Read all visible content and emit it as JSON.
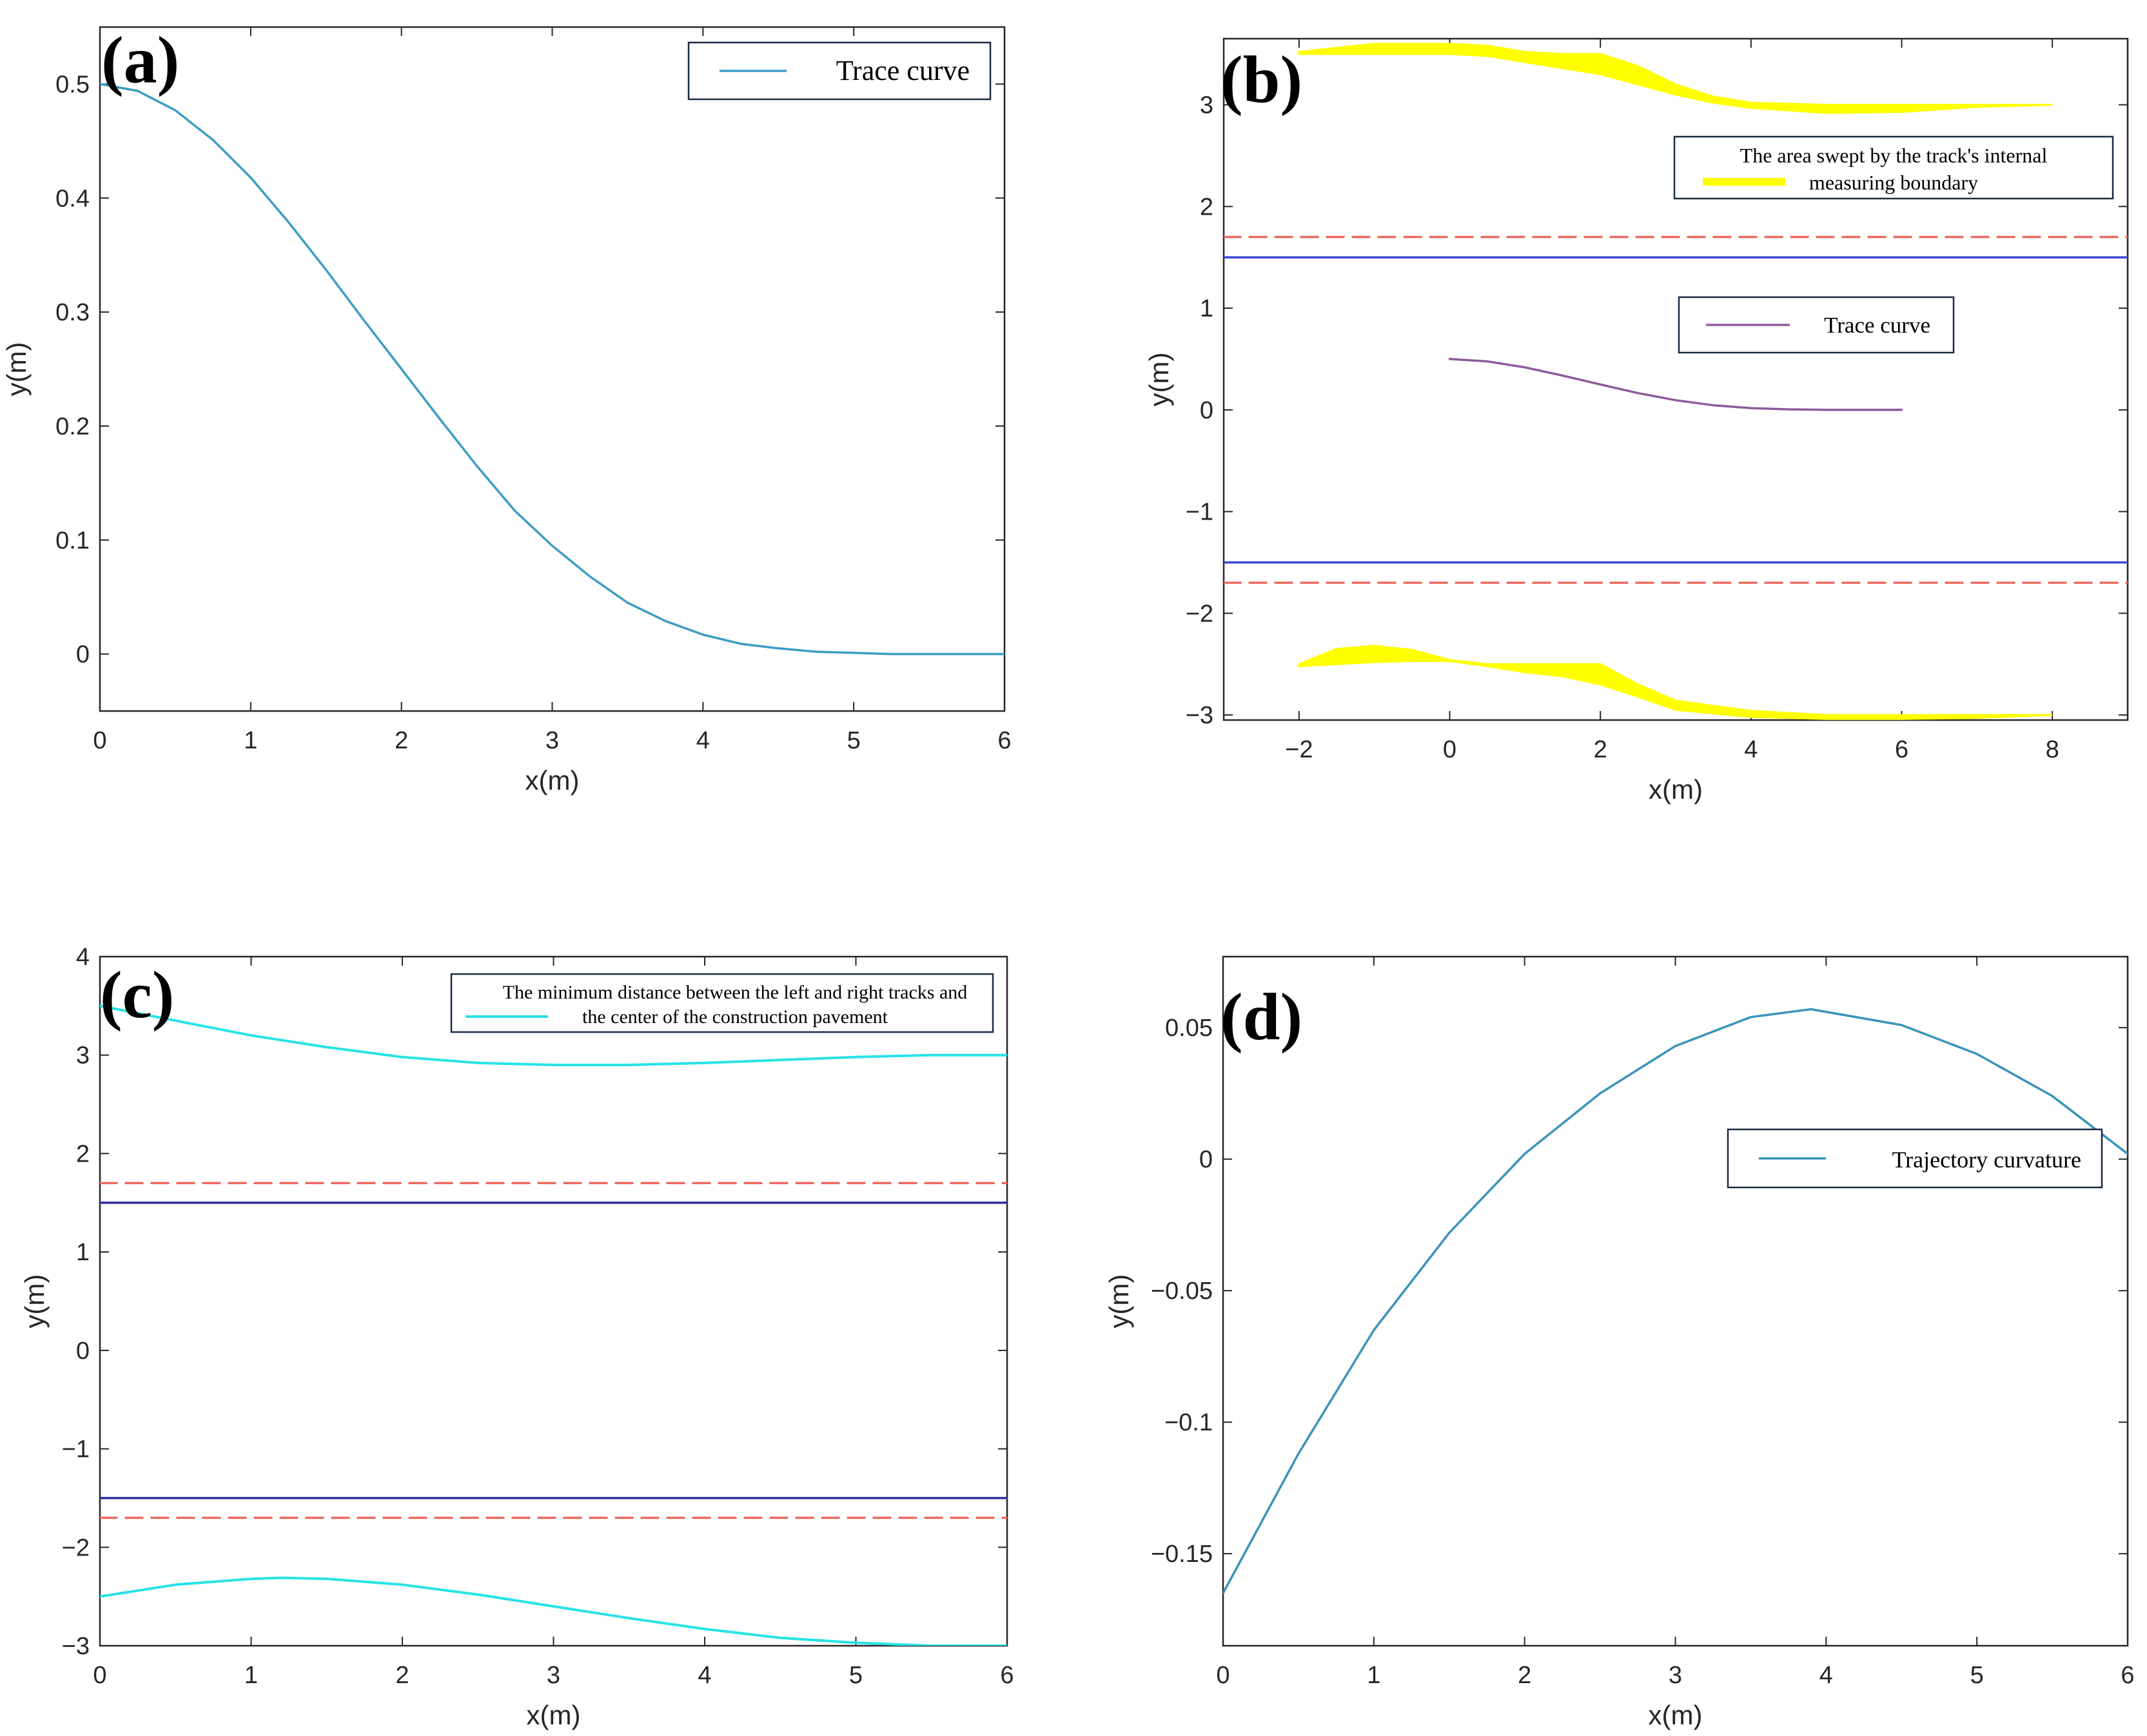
{
  "colors": {
    "trace_a": "#3d9dc4",
    "trace_b": "#8e5b9c",
    "swept": "#ffff00",
    "boundary_blue": "#3c46d6",
    "boundary_blue_c": "#2e2e9a",
    "boundary_red": "#ec6a61",
    "min_dist": "#27e3e6",
    "curvature": "#3a93bb",
    "axes": "#262626"
  },
  "chart_data": [
    {
      "id": "a",
      "panel_label": "(a)",
      "type": "line",
      "xlabel": "x(m)",
      "ylabel": "y(m)",
      "xlim": [
        0,
        6
      ],
      "ylim": [
        -0.05,
        0.55
      ],
      "xticks": [
        0,
        1,
        2,
        3,
        4,
        5,
        6
      ],
      "yticks": [
        0,
        0.1,
        0.2,
        0.3,
        0.4,
        0.5
      ],
      "xtick_labels": [
        "0",
        "1",
        "2",
        "3",
        "4",
        "5",
        "6"
      ],
      "ytick_labels": [
        "0",
        "0.1",
        "0.2",
        "0.3",
        "0.4",
        "0.5"
      ],
      "legend": [
        "Trace curve"
      ],
      "series": [
        {
          "name": "Trace curve",
          "style": "trace_a",
          "x": [
            0,
            0.25,
            0.5,
            0.75,
            1,
            1.25,
            1.5,
            1.75,
            2,
            2.25,
            2.5,
            2.75,
            3,
            3.25,
            3.5,
            3.75,
            4,
            4.25,
            4.5,
            4.75,
            5,
            5.25,
            5.5,
            5.75,
            6
          ],
          "y": [
            0.5,
            0.494,
            0.477,
            0.451,
            0.418,
            0.379,
            0.337,
            0.293,
            0.25,
            0.207,
            0.165,
            0.126,
            0.095,
            0.068,
            0.045,
            0.029,
            0.017,
            0.009,
            0.005,
            0.002,
            0.001,
            0.0,
            0.0,
            0.0,
            0.0
          ]
        }
      ]
    },
    {
      "id": "b",
      "panel_label": "(b)",
      "type": "line",
      "xlabel": "x(m)",
      "ylabel": "y(m)",
      "xlim": [
        -3,
        9
      ],
      "ylim": [
        -3.05,
        3.65
      ],
      "xticks": [
        -2,
        0,
        2,
        4,
        6,
        8
      ],
      "yticks": [
        -3,
        -2,
        -1,
        0,
        1,
        2,
        3
      ],
      "xtick_labels": [
        "−2",
        "0",
        "2",
        "4",
        "6",
        "8"
      ],
      "ytick_labels": [
        "−3",
        "−2",
        "−1",
        "0",
        "1",
        "2",
        "3"
      ],
      "legend": [
        "The area swept by the track's internal",
        "measuring boundary",
        "Trace curve"
      ],
      "series": [
        {
          "name": "Trace curve",
          "style": "trace_b",
          "x": [
            0,
            0.5,
            1,
            1.5,
            2,
            2.5,
            3,
            3.5,
            4,
            4.5,
            5,
            5.5,
            6
          ],
          "y": [
            0.5,
            0.477,
            0.418,
            0.337,
            0.25,
            0.165,
            0.095,
            0.045,
            0.017,
            0.005,
            0.001,
            0.0,
            0.0
          ]
        },
        {
          "name": "swept-upper-top",
          "style": "swept",
          "fill": true,
          "x": [
            -2,
            -1,
            0,
            0.5,
            1,
            1.5,
            2,
            2.5,
            3,
            3.5,
            4,
            5,
            6,
            7,
            8
          ],
          "y": [
            3.52,
            3.6,
            3.6,
            3.58,
            3.52,
            3.5,
            3.5,
            3.38,
            3.2,
            3.08,
            3.02,
            3.0,
            3.0,
            3.0,
            3.0
          ]
        },
        {
          "name": "swept-upper-bottom",
          "style": "swept",
          "fill": true,
          "x": [
            -2,
            -1,
            0,
            0.5,
            1,
            1.5,
            2,
            2.5,
            3,
            3.5,
            4,
            5,
            6,
            7,
            8
          ],
          "y": [
            3.5,
            3.5,
            3.5,
            3.48,
            3.42,
            3.36,
            3.3,
            3.2,
            3.1,
            3.02,
            2.97,
            2.92,
            2.93,
            2.98,
            3.0
          ]
        },
        {
          "name": "swept-lower-top",
          "style": "swept",
          "fill": true,
          "x": [
            -2,
            -1.5,
            -1,
            -0.5,
            0,
            0.5,
            1,
            1.5,
            2,
            2.5,
            3,
            4,
            5,
            6,
            7,
            8
          ],
          "y": [
            -2.5,
            -2.35,
            -2.32,
            -2.36,
            -2.46,
            -2.5,
            -2.5,
            -2.5,
            -2.5,
            -2.7,
            -2.86,
            -2.96,
            -3.0,
            -3.0,
            -3.0,
            -3.0
          ]
        },
        {
          "name": "swept-lower-bottom",
          "style": "swept",
          "fill": true,
          "x": [
            -2,
            -1.5,
            -1,
            -0.5,
            0,
            0.5,
            1,
            1.5,
            2,
            2.5,
            3,
            4,
            5,
            6,
            7,
            8
          ],
          "y": [
            -2.52,
            -2.5,
            -2.48,
            -2.47,
            -2.47,
            -2.52,
            -2.58,
            -2.62,
            -2.7,
            -2.82,
            -2.95,
            -3.02,
            -3.04,
            -3.04,
            -3.03,
            -3.0
          ]
        },
        {
          "name": "boundary-upper-solid",
          "style": "boundary_blue",
          "x": [
            -3,
            9
          ],
          "y": [
            1.5,
            1.5
          ]
        },
        {
          "name": "boundary-lower-solid",
          "style": "boundary_blue",
          "x": [
            -3,
            9
          ],
          "y": [
            -1.5,
            -1.5
          ]
        },
        {
          "name": "boundary-upper-dashed",
          "style": "boundary_red",
          "dashed": true,
          "x": [
            -3,
            9
          ],
          "y": [
            1.7,
            1.7
          ]
        },
        {
          "name": "boundary-lower-dashed",
          "style": "boundary_red",
          "dashed": true,
          "x": [
            -3,
            9
          ],
          "y": [
            -1.7,
            -1.7
          ]
        }
      ]
    },
    {
      "id": "c",
      "panel_label": "(c)",
      "type": "line",
      "xlabel": "x(m)",
      "ylabel": "y(m)",
      "xlim": [
        0,
        6
      ],
      "ylim": [
        -3,
        4
      ],
      "xticks": [
        0,
        1,
        2,
        3,
        4,
        5,
        6
      ],
      "yticks": [
        -3,
        -2,
        -1,
        0,
        1,
        2,
        3,
        4
      ],
      "xtick_labels": [
        "0",
        "1",
        "2",
        "3",
        "4",
        "5",
        "6"
      ],
      "ytick_labels": [
        "−3",
        "−2",
        "−1",
        "0",
        "1",
        "2",
        "3",
        "4"
      ],
      "legend": [
        "The minimum distance between the left and right tracks and",
        "the center of the construction pavement"
      ],
      "series": [
        {
          "name": "min-distance-upper",
          "style": "min_dist",
          "x": [
            0,
            0.5,
            1,
            1.5,
            2,
            2.5,
            3,
            3.5,
            4,
            4.5,
            5,
            5.5,
            6
          ],
          "y": [
            3.5,
            3.35,
            3.2,
            3.08,
            2.98,
            2.92,
            2.9,
            2.9,
            2.92,
            2.95,
            2.98,
            3.0,
            3.0
          ]
        },
        {
          "name": "min-distance-lower",
          "style": "min_dist",
          "x": [
            0,
            0.5,
            1,
            1.2,
            1.5,
            2,
            2.5,
            3,
            3.5,
            4,
            4.5,
            5,
            5.5,
            6
          ],
          "y": [
            -2.5,
            -2.38,
            -2.32,
            -2.31,
            -2.32,
            -2.38,
            -2.48,
            -2.6,
            -2.72,
            -2.83,
            -2.92,
            -2.97,
            -3.0,
            -3.0
          ]
        },
        {
          "name": "boundary-upper-solid",
          "style": "boundary_blue_c",
          "x": [
            0,
            6
          ],
          "y": [
            1.5,
            1.5
          ]
        },
        {
          "name": "boundary-lower-solid",
          "style": "boundary_blue_c",
          "x": [
            0,
            6
          ],
          "y": [
            -1.5,
            -1.5
          ]
        },
        {
          "name": "boundary-upper-dashed",
          "style": "boundary_red",
          "dashed": true,
          "x": [
            0,
            6
          ],
          "y": [
            1.7,
            1.7
          ]
        },
        {
          "name": "boundary-lower-dashed",
          "style": "boundary_red",
          "dashed": true,
          "x": [
            0,
            6
          ],
          "y": [
            -1.7,
            -1.7
          ]
        }
      ]
    },
    {
      "id": "d",
      "panel_label": "(d)",
      "type": "line",
      "xlabel": "x(m)",
      "ylabel": "y(m)",
      "xlim": [
        0,
        6
      ],
      "ylim": [
        -0.185,
        0.077
      ],
      "xticks": [
        0,
        1,
        2,
        3,
        4,
        5,
        6
      ],
      "yticks": [
        -0.15,
        -0.1,
        -0.05,
        0,
        0.05
      ],
      "xtick_labels": [
        "0",
        "1",
        "2",
        "3",
        "4",
        "5",
        "6"
      ],
      "ytick_labels": [
        "−0.15",
        "−0.1",
        "−0.05",
        "0",
        "0.05"
      ],
      "legend": [
        "Trajectory curvature"
      ],
      "series": [
        {
          "name": "Trajectory curvature",
          "style": "curvature",
          "x": [
            0,
            0.5,
            1,
            1.5,
            2,
            2.5,
            3,
            3.5,
            3.9,
            4.5,
            5,
            5.5,
            6
          ],
          "y": [
            -0.165,
            -0.112,
            -0.065,
            -0.028,
            0.002,
            0.025,
            0.043,
            0.054,
            0.057,
            0.051,
            0.04,
            0.024,
            0.002
          ]
        }
      ]
    }
  ]
}
